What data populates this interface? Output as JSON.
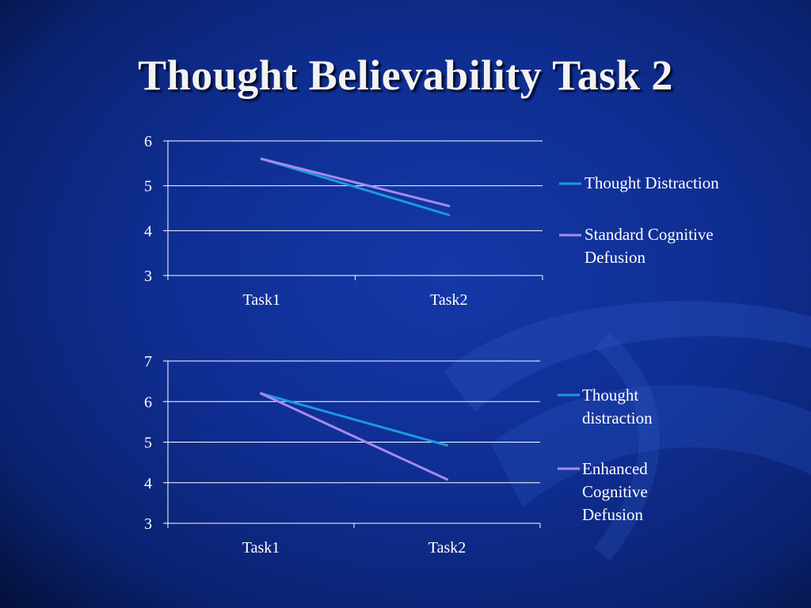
{
  "slide": {
    "title": "Thought Believability Task 2"
  },
  "colors": {
    "background": "#0f2e92",
    "gridline": "#ffffff",
    "series_a": "#1a9ae0",
    "series_b": "#a78bea"
  },
  "chart_data": [
    {
      "type": "line",
      "title": "",
      "categories": [
        "Task1",
        "Task2"
      ],
      "ylim": [
        3,
        6
      ],
      "yticks": [
        3,
        4,
        5,
        6
      ],
      "grid": true,
      "legend_position": "right",
      "series": [
        {
          "name": "Thought Distraction",
          "values": [
            5.6,
            4.35
          ],
          "color": "#1a9ae0"
        },
        {
          "name": "Standard Cognitive Defusion",
          "values": [
            5.6,
            4.55
          ],
          "color": "#a78bea"
        }
      ]
    },
    {
      "type": "line",
      "title": "",
      "categories": [
        "Task1",
        "Task2"
      ],
      "ylim": [
        3,
        7
      ],
      "yticks": [
        3,
        4,
        5,
        6,
        7
      ],
      "grid": true,
      "legend_position": "right",
      "series": [
        {
          "name": "Thought distraction",
          "values": [
            6.2,
            4.92
          ],
          "color": "#1a9ae0"
        },
        {
          "name": "Enhanced Cognitive Defusion",
          "values": [
            6.2,
            4.08
          ],
          "color": "#a78bea"
        }
      ]
    }
  ]
}
